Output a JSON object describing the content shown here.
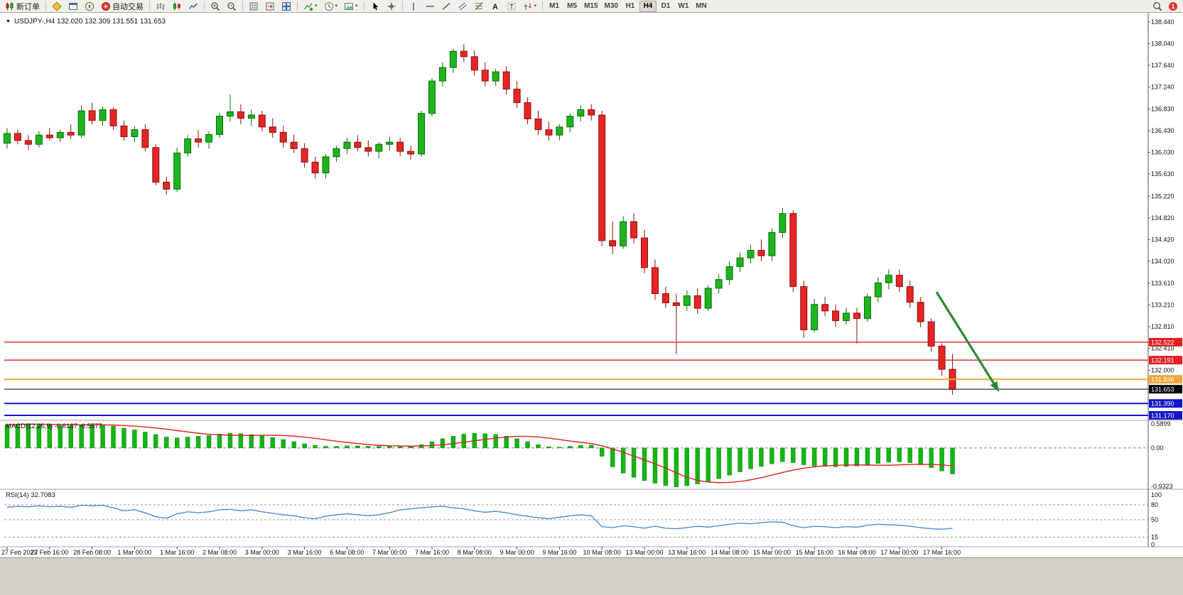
{
  "toolbar": {
    "groups": [
      {
        "items": [
          {
            "name": "new-order-button",
            "icon": "new-order",
            "label": "新订单"
          }
        ]
      },
      {
        "items": [
          {
            "name": "market-watch-button",
            "icon": "diamond"
          },
          {
            "name": "data-window-button",
            "icon": "window"
          },
          {
            "name": "navigator-button",
            "icon": "navigator"
          },
          {
            "name": "auto-trading-button",
            "icon": "autotrade",
            "label": "自动交易"
          }
        ]
      },
      {
        "items": [
          {
            "name": "bar-chart-button",
            "icon": "bars"
          },
          {
            "name": "candlestick-chart-button",
            "icon": "candle"
          },
          {
            "name": "line-chart-button",
            "icon": "linechart"
          }
        ]
      },
      {
        "items": [
          {
            "name": "zoom-in-button",
            "icon": "zoom-in"
          },
          {
            "name": "zoom-out-button",
            "icon": "zoom-out"
          }
        ]
      },
      {
        "items": [
          {
            "name": "auto-scroll-button",
            "icon": "grid"
          },
          {
            "name": "chart-shift-button",
            "icon": "shift"
          },
          {
            "name": "tile-windows-button",
            "icon": "tile"
          }
        ]
      },
      {
        "items": [
          {
            "name": "indicators-button",
            "icon": "indicator",
            "caret": true
          },
          {
            "name": "periods-button",
            "icon": "clock",
            "caret": true
          },
          {
            "name": "templates-button",
            "icon": "template",
            "caret": true
          }
        ]
      },
      {
        "items": [
          {
            "name": "cursor-button",
            "icon": "cursor"
          },
          {
            "name": "crosshair-button",
            "icon": "crosshair"
          }
        ]
      },
      {
        "items": [
          {
            "name": "vertical-line-button",
            "icon": "vline"
          },
          {
            "name": "horizontal-line-button",
            "icon": "hline"
          },
          {
            "name": "trendline-button",
            "icon": "trendline"
          },
          {
            "name": "channel-button",
            "icon": "channel"
          },
          {
            "name": "fibonacci-button",
            "icon": "fibo"
          },
          {
            "name": "text-button",
            "icon": "textA"
          },
          {
            "name": "label-button",
            "icon": "textT"
          },
          {
            "name": "arrows-button",
            "icon": "arrows",
            "caret": true
          }
        ]
      }
    ],
    "timeframes": [
      "M1",
      "M5",
      "M15",
      "M30",
      "H1",
      "H4",
      "D1",
      "W1",
      "MN"
    ],
    "active_timeframe": "H4",
    "right": {
      "notification_count": "1"
    }
  },
  "chart_data": {
    "type": "candlestick",
    "symbol_label": "USDJPY-,H4 132.020 132.309 131.551 131.653",
    "ylim": [
      131.17,
      138.44
    ],
    "y_ticks": [
      "138.440",
      "138.040",
      "137.640",
      "137.240",
      "136.830",
      "136.430",
      "136.030",
      "135.630",
      "135.220",
      "134.820",
      "134.420",
      "134.020",
      "133.610",
      "133.210",
      "132.810",
      "132.410",
      "132.000"
    ],
    "x_labels": [
      "27 Feb 2023",
      "27 Feb 16:00",
      "28 Feb 08:00",
      "1 Mar 00:00",
      "1 Mar 16:00",
      "2 Mar 08:00",
      "3 Mar 00:00",
      "3 Mar 16:00",
      "6 Mar 08:00",
      "7 Mar 00:00",
      "7 Mar 16:00",
      "8 Mar 08:00",
      "9 Mar 00:00",
      "9 Mar 16:00",
      "10 Mar 08:00",
      "13 Mar 00:00",
      "13 Mar 16:00",
      "14 Mar 08:00",
      "15 Mar 00:00",
      "15 Mar 16:00",
      "16 Mar 08:00",
      "17 Mar 00:00",
      "17 Mar 16:00"
    ],
    "candles": [
      [
        136.2,
        136.48,
        136.1,
        136.38
      ],
      [
        136.38,
        136.45,
        136.18,
        136.25
      ],
      [
        136.25,
        136.35,
        136.08,
        136.18
      ],
      [
        136.18,
        136.42,
        136.12,
        136.35
      ],
      [
        136.35,
        136.48,
        136.25,
        136.3
      ],
      [
        136.3,
        136.45,
        136.22,
        136.4
      ],
      [
        136.4,
        136.55,
        136.28,
        136.35
      ],
      [
        136.35,
        136.9,
        136.3,
        136.8
      ],
      [
        136.8,
        136.95,
        136.55,
        136.62
      ],
      [
        136.62,
        136.88,
        136.52,
        136.82
      ],
      [
        136.82,
        136.86,
        136.45,
        136.52
      ],
      [
        136.52,
        136.62,
        136.25,
        136.32
      ],
      [
        136.32,
        136.52,
        136.22,
        136.45
      ],
      [
        136.45,
        136.55,
        136.05,
        136.12
      ],
      [
        136.12,
        136.18,
        135.42,
        135.48
      ],
      [
        135.48,
        135.58,
        135.25,
        135.35
      ],
      [
        135.35,
        136.12,
        135.3,
        136.02
      ],
      [
        136.02,
        136.35,
        135.95,
        136.28
      ],
      [
        136.28,
        136.45,
        136.12,
        136.22
      ],
      [
        136.22,
        136.42,
        136.1,
        136.36
      ],
      [
        136.36,
        136.76,
        136.3,
        136.7
      ],
      [
        136.7,
        137.1,
        136.6,
        136.78
      ],
      [
        136.78,
        136.92,
        136.55,
        136.66
      ],
      [
        136.66,
        136.82,
        136.52,
        136.72
      ],
      [
        136.72,
        136.8,
        136.42,
        136.5
      ],
      [
        136.5,
        136.66,
        136.3,
        136.4
      ],
      [
        136.4,
        136.52,
        136.12,
        136.22
      ],
      [
        136.22,
        136.36,
        136.02,
        136.1
      ],
      [
        136.1,
        136.2,
        135.75,
        135.85
      ],
      [
        135.85,
        135.95,
        135.55,
        135.65
      ],
      [
        135.65,
        136.0,
        135.55,
        135.95
      ],
      [
        135.95,
        136.15,
        135.85,
        136.1
      ],
      [
        136.1,
        136.3,
        136.0,
        136.22
      ],
      [
        136.22,
        136.35,
        136.05,
        136.12
      ],
      [
        136.12,
        136.25,
        135.95,
        136.05
      ],
      [
        136.05,
        136.22,
        135.92,
        136.18
      ],
      [
        136.18,
        136.32,
        136.06,
        136.22
      ],
      [
        136.22,
        136.3,
        135.96,
        136.05
      ],
      [
        136.05,
        136.16,
        135.9,
        136.0
      ],
      [
        136.0,
        136.8,
        135.95,
        136.75
      ],
      [
        136.75,
        137.4,
        136.7,
        137.35
      ],
      [
        137.35,
        137.7,
        137.25,
        137.6
      ],
      [
        137.6,
        137.95,
        137.5,
        137.9
      ],
      [
        137.9,
        138.03,
        137.7,
        137.8
      ],
      [
        137.8,
        137.92,
        137.45,
        137.55
      ],
      [
        137.55,
        137.7,
        137.25,
        137.35
      ],
      [
        137.35,
        137.58,
        137.26,
        137.52
      ],
      [
        137.52,
        137.62,
        137.1,
        137.2
      ],
      [
        137.2,
        137.35,
        136.85,
        136.95
      ],
      [
        136.95,
        137.05,
        136.55,
        136.65
      ],
      [
        136.65,
        136.8,
        136.35,
        136.45
      ],
      [
        136.45,
        136.6,
        136.25,
        136.35
      ],
      [
        136.35,
        136.55,
        136.25,
        136.5
      ],
      [
        136.5,
        136.75,
        136.4,
        136.7
      ],
      [
        136.7,
        136.9,
        136.6,
        136.82
      ],
      [
        136.82,
        136.92,
        136.62,
        136.72
      ],
      [
        136.72,
        136.8,
        134.3,
        134.4
      ],
      [
        134.4,
        134.75,
        134.15,
        134.3
      ],
      [
        134.3,
        134.85,
        134.25,
        134.75
      ],
      [
        134.75,
        134.9,
        134.35,
        134.45
      ],
      [
        134.45,
        134.6,
        133.8,
        133.9
      ],
      [
        133.9,
        134.05,
        133.3,
        133.42
      ],
      [
        133.42,
        133.55,
        133.15,
        133.25
      ],
      [
        133.25,
        133.42,
        132.3,
        133.2
      ],
      [
        133.2,
        133.48,
        133.1,
        133.38
      ],
      [
        133.38,
        133.52,
        133.05,
        133.15
      ],
      [
        133.15,
        133.58,
        133.1,
        133.52
      ],
      [
        133.52,
        133.78,
        133.42,
        133.68
      ],
      [
        133.68,
        134.02,
        133.58,
        133.92
      ],
      [
        133.92,
        134.18,
        133.82,
        134.08
      ],
      [
        134.08,
        134.32,
        133.98,
        134.22
      ],
      [
        134.22,
        134.42,
        134.02,
        134.12
      ],
      [
        134.12,
        134.62,
        134.02,
        134.55
      ],
      [
        134.55,
        135.0,
        134.45,
        134.9
      ],
      [
        134.9,
        134.96,
        133.45,
        133.55
      ],
      [
        133.55,
        133.66,
        132.6,
        132.75
      ],
      [
        132.75,
        133.32,
        132.7,
        133.22
      ],
      [
        133.22,
        133.36,
        133.0,
        133.1
      ],
      [
        133.1,
        133.22,
        132.8,
        132.92
      ],
      [
        132.92,
        133.16,
        132.85,
        133.06
      ],
      [
        133.06,
        133.16,
        132.5,
        132.96
      ],
      [
        132.96,
        133.42,
        132.9,
        133.36
      ],
      [
        133.36,
        133.72,
        133.26,
        133.62
      ],
      [
        133.62,
        133.87,
        133.5,
        133.76
      ],
      [
        133.76,
        133.86,
        133.45,
        133.55
      ],
      [
        133.55,
        133.66,
        133.16,
        133.26
      ],
      [
        133.26,
        133.36,
        132.8,
        132.9
      ],
      [
        132.9,
        132.96,
        132.35,
        132.45
      ],
      [
        132.45,
        132.5,
        131.9,
        132.02
      ],
      [
        132.02,
        132.309,
        131.551,
        131.653
      ]
    ],
    "hlines": [
      {
        "price": 132.522,
        "label": "132.522",
        "color": "#e02020",
        "width": 1.3
      },
      {
        "price": 132.191,
        "label": "132.191",
        "color": "#e02020",
        "width": 1.3
      },
      {
        "price": 131.836,
        "label": "131.836",
        "color": "#efa73c",
        "width": 2
      },
      {
        "price": 131.653,
        "label": "131.653",
        "color": "#000000",
        "width": 1
      },
      {
        "price": 131.39,
        "label": "131.390",
        "color": "#1515cc",
        "width": 2
      },
      {
        "price": 131.17,
        "label": "131.170",
        "color": "#1515cc",
        "width": 2
      }
    ],
    "arrow": {
      "from_index": 87.5,
      "from_price": 133.45,
      "to_index": 93.4,
      "to_price": 131.6,
      "color": "#2d8a2d"
    },
    "macd": {
      "label": "MACD(12,26,9) -0.6187 -0.5577",
      "ylim": [
        -0.9323,
        0.5899
      ],
      "y_ticks": [
        "0.5899",
        "0.00",
        "-0.9323"
      ],
      "values": [
        0.55,
        0.57,
        0.58,
        0.56,
        0.55,
        0.53,
        0.52,
        0.54,
        0.56,
        0.55,
        0.52,
        0.47,
        0.43,
        0.38,
        0.32,
        0.26,
        0.24,
        0.26,
        0.28,
        0.3,
        0.33,
        0.35,
        0.34,
        0.32,
        0.29,
        0.25,
        0.2,
        0.15,
        0.1,
        0.06,
        0.04,
        0.04,
        0.05,
        0.05,
        0.04,
        0.04,
        0.05,
        0.04,
        0.03,
        0.08,
        0.15,
        0.22,
        0.28,
        0.33,
        0.35,
        0.34,
        0.32,
        0.28,
        0.22,
        0.15,
        0.08,
        0.03,
        0.02,
        0.04,
        0.06,
        0.07,
        -0.2,
        -0.45,
        -0.6,
        -0.7,
        -0.78,
        -0.84,
        -0.9,
        -0.93,
        -0.9,
        -0.86,
        -0.8,
        -0.73,
        -0.65,
        -0.57,
        -0.5,
        -0.44,
        -0.38,
        -0.33,
        -0.35,
        -0.4,
        -0.43,
        -0.44,
        -0.45,
        -0.44,
        -0.43,
        -0.4,
        -0.37,
        -0.34,
        -0.33,
        -0.35,
        -0.4,
        -0.47,
        -0.55,
        -0.62
      ]
    },
    "rsi": {
      "label": "RSI(14) 32.7083",
      "ylim": [
        0,
        100
      ],
      "levels": [
        80,
        50,
        15
      ],
      "y_ticks": [
        "100",
        "80",
        "50",
        "15",
        "0"
      ],
      "values": [
        75,
        77,
        76,
        78,
        76,
        77,
        75,
        79,
        78,
        79,
        74,
        68,
        70,
        64,
        56,
        53,
        62,
        66,
        64,
        66,
        70,
        71,
        68,
        70,
        66,
        63,
        60,
        58,
        54,
        52,
        57,
        60,
        62,
        60,
        58,
        60,
        64,
        70,
        72,
        74,
        76,
        77,
        74,
        72,
        68,
        65,
        67,
        64,
        60,
        57,
        54,
        52,
        55,
        58,
        60,
        58,
        36,
        34,
        38,
        36,
        33,
        37,
        33,
        32,
        34,
        37,
        35,
        38,
        41,
        43,
        42,
        44,
        46,
        45,
        38,
        34,
        37,
        36,
        34,
        36,
        35,
        39,
        41,
        40,
        39,
        37,
        34,
        32,
        31,
        32.7
      ]
    },
    "colors": {
      "bull": "#1db51d",
      "bull_edge": "#0b6e0b",
      "bear": "#e62525",
      "bear_edge": "#8f0f0f",
      "macd_hist": "#14b514",
      "macd_signal": "#e02020",
      "rsi": "#4a8fd4",
      "arrow": "#2d8a2d"
    }
  }
}
